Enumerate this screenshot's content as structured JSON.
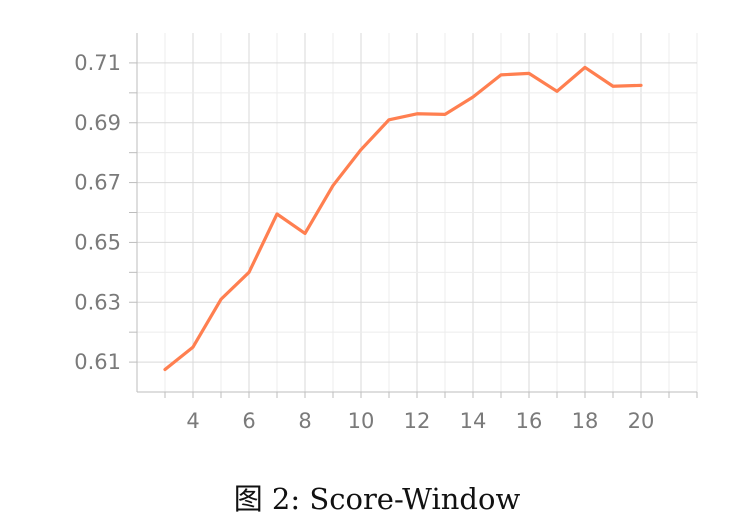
{
  "caption": "图 2: Score-Window",
  "chart_data": {
    "type": "line",
    "title": "",
    "xlabel": "",
    "ylabel": "",
    "x": [
      3,
      4,
      5,
      6,
      7,
      8,
      9,
      10,
      11,
      12,
      13,
      14,
      15,
      16,
      17,
      18,
      19,
      20
    ],
    "series": [
      {
        "name": "",
        "color": "#ff7f50",
        "values": [
          0.6075,
          0.615,
          0.631,
          0.64,
          0.6595,
          0.653,
          0.669,
          0.681,
          0.691,
          0.693,
          0.6928,
          0.6986,
          0.706,
          0.7065,
          0.7005,
          0.7085,
          0.7022,
          0.7025
        ]
      }
    ],
    "x_ticks": [
      "4",
      "6",
      "8",
      "10",
      "12",
      "14",
      "16",
      "18",
      "20"
    ],
    "y_ticks": [
      "0.61",
      "0.63",
      "0.65",
      "0.67",
      "0.69",
      "0.71"
    ],
    "xlim": [
      2,
      22
    ],
    "ylim": [
      0.6,
      0.72
    ],
    "grid": true,
    "legend": "none"
  }
}
